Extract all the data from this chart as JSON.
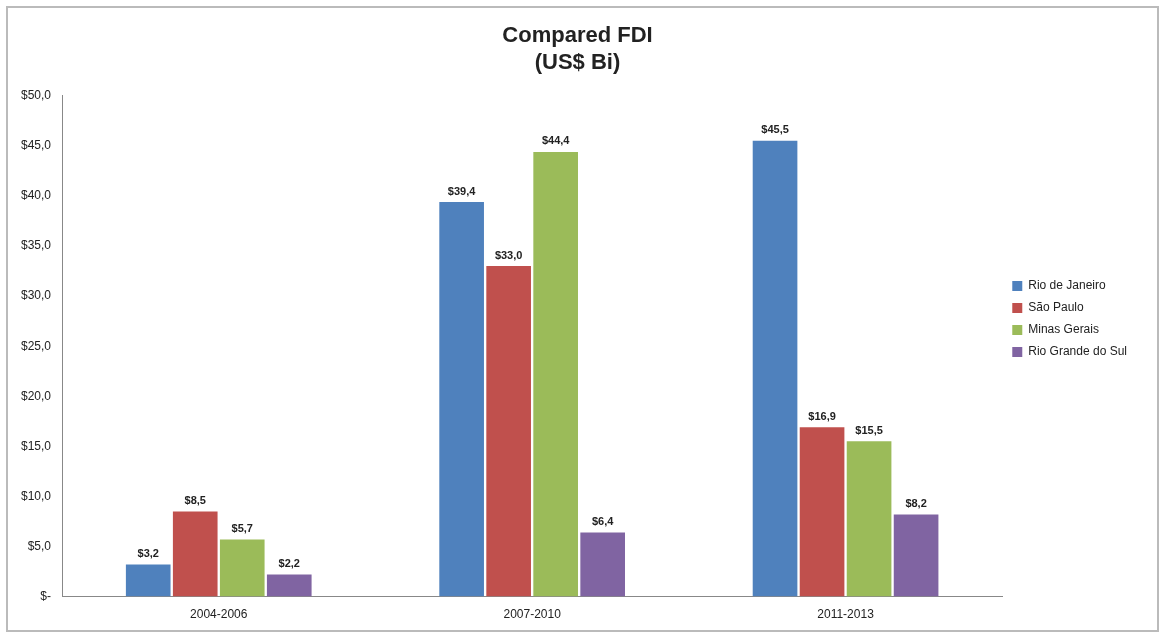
{
  "chart_data": {
    "type": "bar",
    "title": "Compared FDI",
    "subtitle": "(US$ Bi)",
    "categories": [
      "2004-2006",
      "2007-2010",
      "2011-2013"
    ],
    "series": [
      {
        "name": "Rio de Janeiro",
        "color": "#4f81bd",
        "values": [
          3.2,
          39.4,
          45.5
        ],
        "value_labels": [
          "$3,2",
          "$39,4",
          "$45,5"
        ]
      },
      {
        "name": "São Paulo",
        "color": "#c0504d",
        "values": [
          8.5,
          33.0,
          16.9
        ],
        "value_labels": [
          "$8,5",
          "$33,0",
          "$16,9"
        ]
      },
      {
        "name": "Minas Gerais",
        "color": "#9bbb59",
        "values": [
          5.7,
          44.4,
          15.5
        ],
        "value_labels": [
          "$5,7",
          "$44,4",
          "$15,5"
        ]
      },
      {
        "name": "Rio Grande do Sul",
        "color": "#8064a2",
        "values": [
          2.2,
          6.4,
          8.2
        ],
        "value_labels": [
          "$2,2",
          "$6,4",
          "$8,2"
        ]
      }
    ],
    "ylim": [
      0,
      50
    ],
    "yticks": [
      {
        "value": 0,
        "label": "$-"
      },
      {
        "value": 5,
        "label": "$5,0"
      },
      {
        "value": 10,
        "label": "$10,0"
      },
      {
        "value": 15,
        "label": "$15,0"
      },
      {
        "value": 20,
        "label": "$20,0"
      },
      {
        "value": 25,
        "label": "$25,0"
      },
      {
        "value": 30,
        "label": "$30,0"
      },
      {
        "value": 35,
        "label": "$35,0"
      },
      {
        "value": 40,
        "label": "$40,0"
      },
      {
        "value": 45,
        "label": "$45,0"
      },
      {
        "value": 50,
        "label": "$50,0"
      }
    ],
    "grid": false,
    "legend": "right"
  }
}
